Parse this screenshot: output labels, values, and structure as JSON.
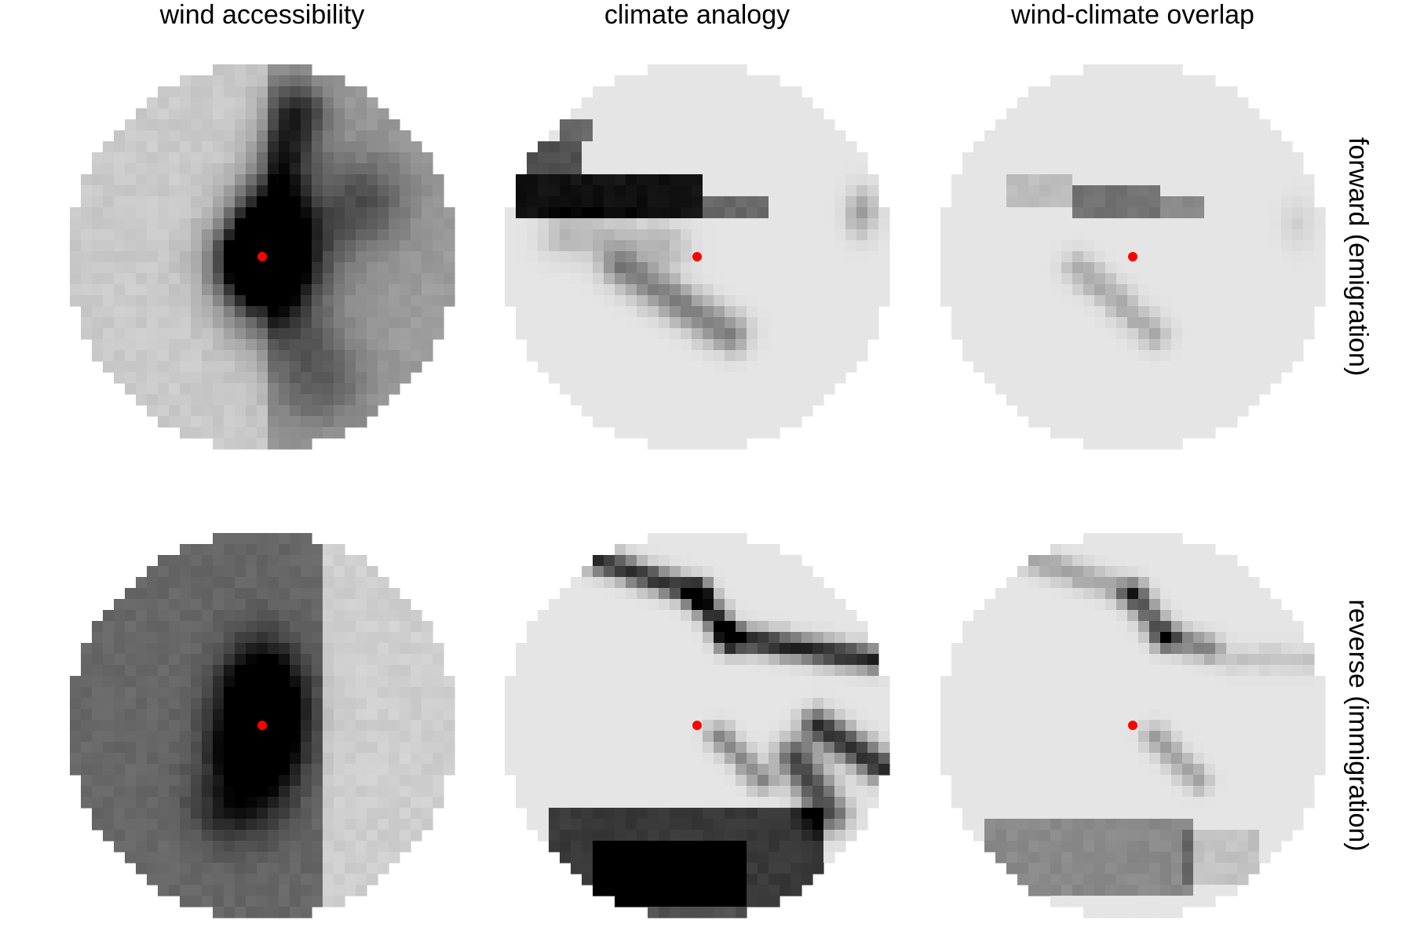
{
  "chart_data": {
    "type": "heatmap",
    "column_titles": [
      "wind accessibility",
      "climate analogy",
      "wind-climate overlap"
    ],
    "row_titles": [
      "forward (emigration)",
      "reverse (immigration)"
    ],
    "grid_size": 35,
    "disc_radius_cells": 17,
    "value_range": [
      0,
      1
    ],
    "color_scale": {
      "low": "#e5e5e5",
      "high": "#000000"
    },
    "origin_marker": {
      "color": "#ff0000",
      "cell": [
        17,
        17
      ]
    },
    "panels": [
      {
        "row": "forward (emigration)",
        "column": "wind accessibility",
        "fields": [
          {
            "kind": "base",
            "level": 0.12
          },
          {
            "kind": "peak",
            "cell": [
              17,
              17
            ],
            "sx": 2.5,
            "sy": 3.5,
            "level": 0.85
          },
          {
            "kind": "ridge",
            "from": [
              17,
              17
            ],
            "to": [
              20,
              4
            ],
            "width": 2.0,
            "level": 0.55
          },
          {
            "kind": "ridge",
            "from": [
              17,
              18
            ],
            "to": [
              26,
              12
            ],
            "width": 3.0,
            "level": 0.35
          },
          {
            "kind": "ridge",
            "from": [
              17,
              18
            ],
            "to": [
              22,
              28
            ],
            "width": 3.0,
            "level": 0.3
          },
          {
            "kind": "halfplane",
            "axis": "x",
            "min": 18,
            "level": 0.2
          }
        ]
      },
      {
        "row": "forward (emigration)",
        "column": "climate analogy",
        "fields": [
          {
            "kind": "rect",
            "x": [
              1,
              17
            ],
            "y": [
              10,
              13
            ],
            "level": 0.92
          },
          {
            "kind": "rect",
            "x": [
              2,
              6
            ],
            "y": [
              7,
              9
            ],
            "level": 0.65
          },
          {
            "kind": "rect",
            "x": [
              5,
              7
            ],
            "y": [
              5,
              6
            ],
            "level": 0.55
          },
          {
            "kind": "rect",
            "x": [
              18,
              23
            ],
            "y": [
              12,
              13
            ],
            "level": 0.55
          },
          {
            "kind": "ridge",
            "from": [
              10,
              18
            ],
            "to": [
              20,
              24
            ],
            "width": 1.2,
            "level": 0.45
          },
          {
            "kind": "ridge",
            "from": [
              5,
              15
            ],
            "to": [
              14,
              16
            ],
            "width": 1.5,
            "level": 0.2
          },
          {
            "kind": "peak",
            "cell": [
              32,
              13
            ],
            "sx": 1.0,
            "sy": 1.5,
            "level": 0.3
          }
        ]
      },
      {
        "row": "forward (emigration)",
        "column": "wind-climate overlap",
        "fields": [
          {
            "kind": "rect",
            "x": [
              12,
              19
            ],
            "y": [
              11,
              13
            ],
            "level": 0.5
          },
          {
            "kind": "rect",
            "x": [
              6,
              11
            ],
            "y": [
              10,
              12
            ],
            "level": 0.18
          },
          {
            "kind": "rect",
            "x": [
              20,
              23
            ],
            "y": [
              12,
              13
            ],
            "level": 0.4
          },
          {
            "kind": "ridge",
            "from": [
              12,
              18
            ],
            "to": [
              19,
              24
            ],
            "width": 1.0,
            "level": 0.25
          },
          {
            "kind": "peak",
            "cell": [
              32,
              14
            ],
            "sx": 1.0,
            "sy": 1.5,
            "level": 0.1
          }
        ]
      },
      {
        "row": "reverse (immigration)",
        "column": "wind accessibility",
        "fields": [
          {
            "kind": "base",
            "level": 0.1
          },
          {
            "kind": "halfplane",
            "axis": "x",
            "max": 22,
            "level": 0.45
          },
          {
            "kind": "peak",
            "cell": [
              17,
              17
            ],
            "sx": 2.5,
            "sy": 4.5,
            "level": 0.8
          },
          {
            "kind": "ridge",
            "from": [
              17,
              14
            ],
            "to": [
              14,
              24
            ],
            "width": 2.5,
            "level": 0.3
          }
        ]
      },
      {
        "row": "reverse (immigration)",
        "column": "climate analogy",
        "fields": [
          {
            "kind": "ridge",
            "from": [
              8,
              2
            ],
            "to": [
              17,
              5
            ],
            "width": 0.8,
            "level": 0.8
          },
          {
            "kind": "ridge",
            "from": [
              17,
              5
            ],
            "to": [
              20,
              9
            ],
            "width": 0.8,
            "level": 0.85
          },
          {
            "kind": "ridge",
            "from": [
              20,
              9
            ],
            "to": [
              33,
              11
            ],
            "width": 0.8,
            "level": 0.85
          },
          {
            "kind": "ridge",
            "from": [
              28,
              17
            ],
            "to": [
              34,
              21
            ],
            "width": 1.0,
            "level": 0.8
          },
          {
            "kind": "ridge",
            "from": [
              19,
              18
            ],
            "to": [
              23,
              22
            ],
            "width": 0.8,
            "level": 0.4
          },
          {
            "kind": "ridge",
            "from": [
              26,
              20
            ],
            "to": [
              29,
              25
            ],
            "width": 1.2,
            "level": 0.7
          },
          {
            "kind": "rect",
            "x": [
              4,
              28
            ],
            "y": [
              25,
              33
            ],
            "level": 0.75
          },
          {
            "kind": "rect",
            "x": [
              8,
              21
            ],
            "y": [
              28,
              34
            ],
            "level": 0.65
          }
        ]
      },
      {
        "row": "reverse (immigration)",
        "column": "wind-climate overlap",
        "fields": [
          {
            "kind": "ridge",
            "from": [
              8,
              2
            ],
            "to": [
              17,
              5
            ],
            "width": 0.8,
            "level": 0.3
          },
          {
            "kind": "ridge",
            "from": [
              17,
              5
            ],
            "to": [
              20,
              9
            ],
            "width": 0.8,
            "level": 0.6
          },
          {
            "kind": "ridge",
            "from": [
              20,
              9
            ],
            "to": [
              24,
              10
            ],
            "width": 0.8,
            "level": 0.45
          },
          {
            "kind": "ridge",
            "from": [
              26,
              11
            ],
            "to": [
              33,
              11
            ],
            "width": 0.8,
            "level": 0.15
          },
          {
            "kind": "ridge",
            "from": [
              19,
              18
            ],
            "to": [
              23,
              22
            ],
            "width": 0.8,
            "level": 0.3
          },
          {
            "kind": "rect",
            "x": [
              4,
              22
            ],
            "y": [
              26,
              32
            ],
            "level": 0.4
          },
          {
            "kind": "rect",
            "x": [
              22,
              28
            ],
            "y": [
              27,
              31
            ],
            "level": 0.15
          }
        ]
      }
    ]
  }
}
